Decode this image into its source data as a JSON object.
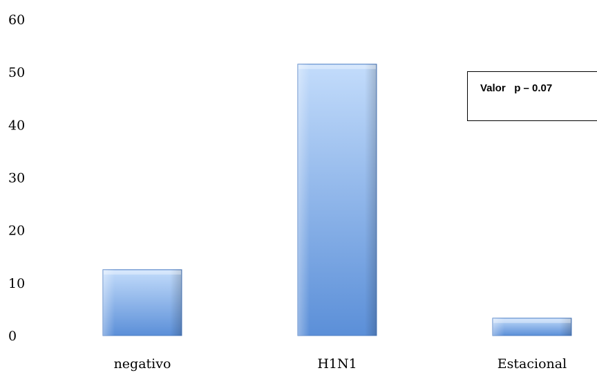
{
  "chart_data": {
    "type": "bar",
    "categories": [
      "negativo",
      "H1N1",
      "Estacional"
    ],
    "values": [
      12.5,
      51.5,
      3.3
    ],
    "ylim": [
      0,
      60
    ],
    "yticks": [
      0,
      10,
      20,
      30,
      40,
      50,
      60
    ],
    "yticklabels": [
      "0",
      "10",
      "20",
      "30",
      "40",
      "50",
      "60"
    ],
    "title": "",
    "xlabel": "",
    "ylabel": "",
    "grid": false,
    "bar_color_light": "#bcd6f8",
    "bar_color_dark": "#5d8fd6",
    "annotation": "Valor   p – 0.07"
  }
}
